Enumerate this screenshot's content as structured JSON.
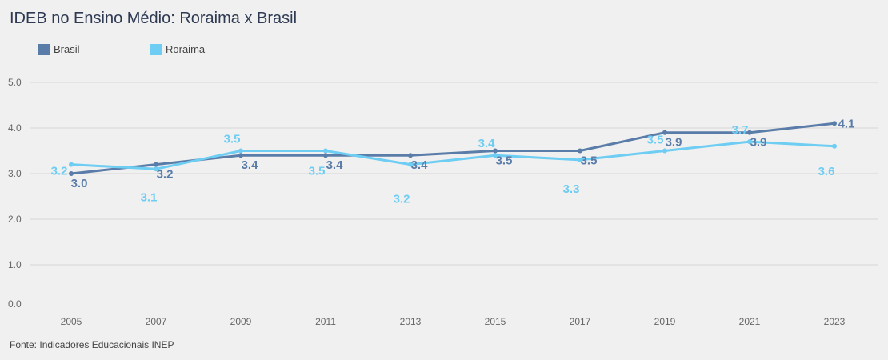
{
  "title": "IDEB no Ensino Médio: Roraima x Brasil",
  "source": "Fonte: Indicadores Educacionais INEP",
  "chart_data": {
    "type": "line",
    "title": "IDEB no Ensino Médio: Roraima x Brasil",
    "xlabel": "",
    "ylabel": "",
    "categories": [
      "2005",
      "2007",
      "2009",
      "2011",
      "2013",
      "2015",
      "2017",
      "2019",
      "2021",
      "2023"
    ],
    "y_ticks": [
      "0.0",
      "1.0",
      "2.0",
      "3.0",
      "4.0",
      "5.0"
    ],
    "ylim": [
      0,
      5
    ],
    "grid": true,
    "legend_position": "top-left",
    "series": [
      {
        "name": "Brasil",
        "color": "#5a7ca8",
        "values": [
          3.0,
          3.2,
          3.4,
          3.4,
          3.4,
          3.5,
          3.5,
          3.9,
          3.9,
          4.1
        ],
        "labels": [
          "3.0",
          "3.2",
          "3.4",
          "3.4",
          "3.4",
          "3.5",
          "3.5",
          "3.9",
          "3.9",
          "4.1"
        ]
      },
      {
        "name": "Roraima",
        "color": "#6ecdf2",
        "values": [
          3.2,
          3.1,
          3.5,
          3.5,
          3.2,
          3.4,
          3.3,
          3.5,
          3.7,
          3.6
        ],
        "labels": [
          "3.2",
          "3.1",
          "3.5",
          "3.5",
          "3.2",
          "3.4",
          "3.3",
          "3.5",
          "3.7",
          "3.6"
        ]
      }
    ]
  }
}
